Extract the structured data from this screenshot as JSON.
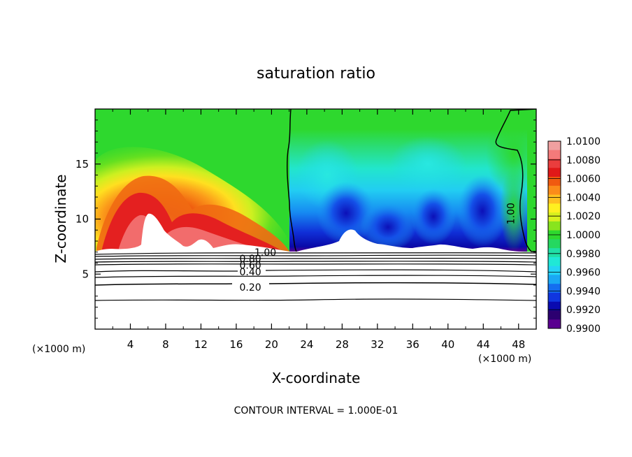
{
  "chart_data": {
    "type": "heatmap",
    "title": "saturation ratio",
    "xlabel": "X-coordinate",
    "ylabel": "Z-coordinate",
    "x_unit_left": "(×1000 m)",
    "x_unit_right": "(×1000 m)",
    "footnote": "CONTOUR INTERVAL = 1.000E-01",
    "xlim": [
      0,
      50
    ],
    "ylim": [
      0,
      20
    ],
    "x_ticks": [
      4,
      8,
      12,
      16,
      20,
      24,
      28,
      32,
      36,
      40,
      44,
      48
    ],
    "y_ticks": [
      5,
      10,
      15
    ],
    "colorbar": {
      "min": 0.99,
      "max": 1.01,
      "labels": [
        "1.0100",
        "1.0080",
        "1.0060",
        "1.0040",
        "1.0020",
        "1.0000",
        "0.9980",
        "0.9960",
        "0.9940",
        "0.9920",
        "0.9900"
      ],
      "colors": [
        "#f0a0a0",
        "#f47a7a",
        "#ea3d3d",
        "#e01818",
        "#f05a10",
        "#fb8c1a",
        "#ffc020",
        "#fff020",
        "#d8f01e",
        "#88e41e",
        "#2ed82e",
        "#25d860",
        "#20e0a6",
        "#20e8d6",
        "#24d4f4",
        "#1aa8f4",
        "#146ef0",
        "#1036e0",
        "#0a0ab0",
        "#2c0070",
        "#5a0090"
      ]
    },
    "contour_labels": [
      {
        "text": "1.00",
        "x": 19.3,
        "z": 7.0
      },
      {
        "text": "0.80",
        "x": 17.6,
        "z": 6.4
      },
      {
        "text": "0.60",
        "x": 17.6,
        "z": 5.8
      },
      {
        "text": "0.40",
        "x": 17.6,
        "z": 5.2
      },
      {
        "text": "0.20",
        "x": 17.6,
        "z": 3.8
      },
      {
        "text": "1.00",
        "x": 47.1,
        "z": 10.5
      }
    ],
    "contour_levels_z": [
      7.0,
      6.8,
      6.6,
      6.4,
      6.2,
      5.6,
      4.9,
      4.2,
      2.7
    ],
    "boundary_1_00": [
      [
        21.9,
        20
      ],
      [
        22.1,
        16
      ],
      [
        22.0,
        12
      ],
      [
        22.4,
        8.5
      ],
      [
        22.3,
        7.0
      ]
    ],
    "cloud_base_z": 7.2,
    "west_moist_region_x": [
      0,
      22.3
    ],
    "east_dry_region_x": [
      22.3,
      48.5
    ]
  }
}
